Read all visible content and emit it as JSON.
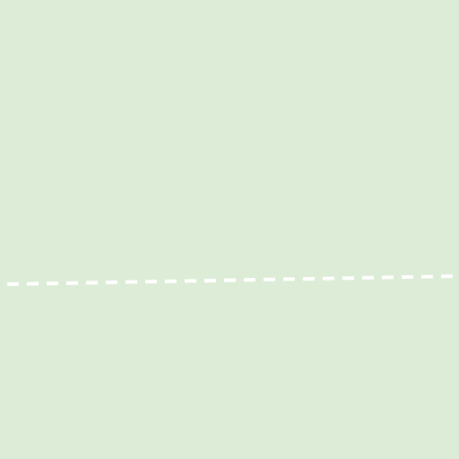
{
  "map": {
    "background_color": "#dcecd6",
    "features": [
      {
        "type": "dashed-path",
        "kind": "trail",
        "color": "#ffffff",
        "style": "dashed"
      }
    ]
  }
}
